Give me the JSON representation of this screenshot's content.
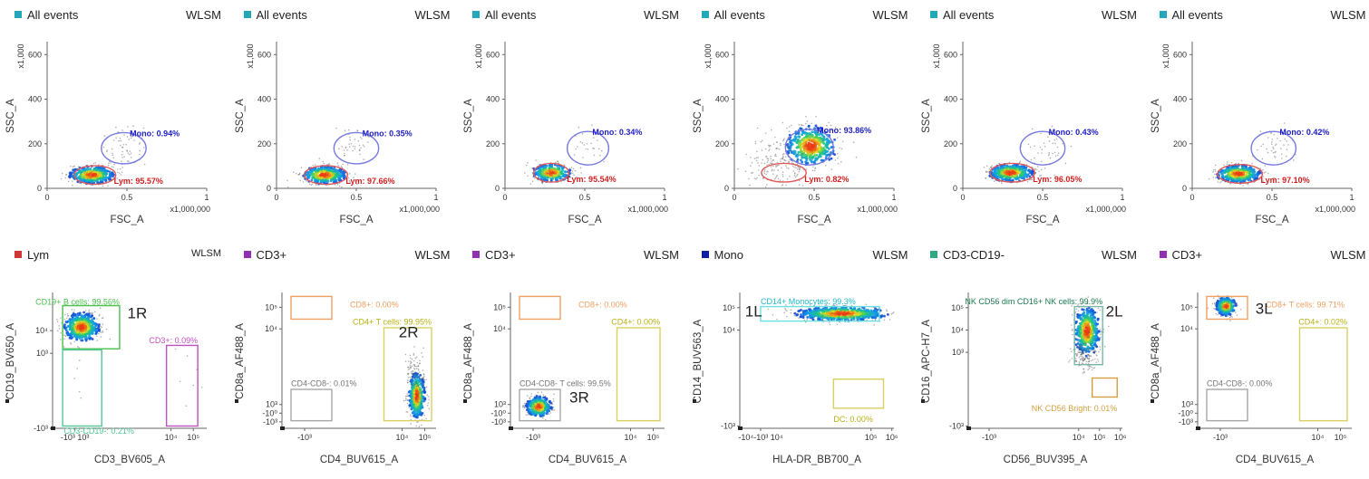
{
  "chart_data": [
    {
      "type": "scatter",
      "header": {
        "population": "All events",
        "source": "WLSM",
        "swatch": "#22a8b8"
      },
      "xlabel": "FSC_A",
      "ylabel": "SSC_A",
      "xlim": [
        0,
        1000000
      ],
      "ylim": [
        0,
        650000
      ],
      "x_ticks": [
        "0",
        "0.5",
        "1"
      ],
      "x_mult": "x1,000,000",
      "y_ticks": [
        "0",
        "200",
        "400",
        "600"
      ],
      "y_mult": "x1,000",
      "gates": [
        {
          "name": "Lym",
          "label": "Lym: 95.57%",
          "color": "#e05a5a",
          "cx": 300000,
          "cy": 60000,
          "rx": 130000,
          "ry": 42000
        },
        {
          "name": "Mono",
          "label": "Mono: 0.94%",
          "color": "#7a7ae0",
          "cx": 480000,
          "cy": 180000,
          "rx": 140000,
          "ry": 70000
        }
      ],
      "clusters": [
        {
          "x": 280000,
          "y": 60000,
          "sx": 70000,
          "sy": 20000,
          "n": 420
        },
        {
          "x": 480000,
          "y": 190000,
          "sx": 60000,
          "sy": 45000,
          "n": 60
        }
      ]
    },
    {
      "type": "scatter",
      "header": {
        "population": "All events",
        "source": "WLSM",
        "swatch": "#22a8b8"
      },
      "xlabel": "FSC_A",
      "ylabel": "SSC_A",
      "xlim": [
        0,
        1000000
      ],
      "ylim": [
        0,
        650000
      ],
      "x_ticks": [
        "0",
        "0.5",
        "1"
      ],
      "x_mult": "x1,000,000",
      "y_ticks": [
        "0",
        "200",
        "400",
        "600"
      ],
      "y_mult": "x1,000",
      "gates": [
        {
          "name": "Lym",
          "label": "Lym: 97.66%",
          "color": "#e05a5a",
          "cx": 310000,
          "cy": 60000,
          "rx": 135000,
          "ry": 42000
        },
        {
          "name": "Mono",
          "label": "Mono: 0.35%",
          "color": "#7a7ae0",
          "cx": 500000,
          "cy": 180000,
          "rx": 140000,
          "ry": 70000
        }
      ],
      "clusters": [
        {
          "x": 300000,
          "y": 60000,
          "sx": 70000,
          "sy": 20000,
          "n": 420
        },
        {
          "x": 500000,
          "y": 190000,
          "sx": 60000,
          "sy": 40000,
          "n": 40
        }
      ]
    },
    {
      "type": "scatter",
      "header": {
        "population": "All events",
        "source": "WLSM",
        "swatch": "#22a8b8"
      },
      "xlabel": "FSC_A",
      "ylabel": "SSC_A",
      "xlim": [
        0,
        1000000
      ],
      "ylim": [
        0,
        650000
      ],
      "x_ticks": [
        "0",
        "0.5",
        "1"
      ],
      "x_mult": "x1,000,000",
      "y_ticks": [
        "0",
        "200",
        "400",
        "600"
      ],
      "y_mult": "x1,000",
      "gates": [
        {
          "name": "Lym",
          "label": "Lym: 95.54%",
          "color": "#e05a5a",
          "cx": 290000,
          "cy": 70000,
          "rx": 110000,
          "ry": 42000
        },
        {
          "name": "Mono",
          "label": "Mono: 0.34%",
          "color": "#7a7ae0",
          "cx": 520000,
          "cy": 180000,
          "rx": 130000,
          "ry": 75000
        }
      ],
      "clusters": [
        {
          "x": 290000,
          "y": 70000,
          "sx": 60000,
          "sy": 20000,
          "n": 300
        },
        {
          "x": 520000,
          "y": 190000,
          "sx": 60000,
          "sy": 40000,
          "n": 25
        }
      ]
    },
    {
      "type": "scatter",
      "header": {
        "population": "All events",
        "source": "WLSM",
        "swatch": "#22a8b8"
      },
      "xlabel": "FSC_A",
      "ylabel": "SSC_A",
      "xlim": [
        0,
        1000000
      ],
      "ylim": [
        0,
        650000
      ],
      "x_ticks": [
        "0",
        "0.5",
        "1"
      ],
      "x_mult": "x1,000,000",
      "y_ticks": [
        "0",
        "200",
        "400",
        "600"
      ],
      "y_mult": "x1,000",
      "gates": [
        {
          "name": "Lym",
          "label": "Lym: 0.82%",
          "color": "#e05a5a",
          "cx": 310000,
          "cy": 70000,
          "rx": 140000,
          "ry": 42000
        },
        {
          "name": "Mono",
          "label": "Mono: 93.86%",
          "color": "#7a7ae0",
          "cx": 470000,
          "cy": 185000,
          "rx": 150000,
          "ry": 80000
        }
      ],
      "clusters": [
        {
          "x": 480000,
          "y": 190000,
          "sx": 80000,
          "sy": 45000,
          "n": 480
        },
        {
          "x": 250000,
          "y": 110000,
          "sx": 100000,
          "sy": 60000,
          "n": 180
        }
      ]
    },
    {
      "type": "scatter",
      "header": {
        "population": "All events",
        "source": "WLSM",
        "swatch": "#22a8b8"
      },
      "xlabel": "FSC_A",
      "ylabel": "SSC_A",
      "xlim": [
        0,
        1000000
      ],
      "ylim": [
        0,
        650000
      ],
      "x_ticks": [
        "0",
        "0.5",
        "1"
      ],
      "x_mult": "x1,000,000",
      "y_ticks": [
        "0",
        "200",
        "400",
        "600"
      ],
      "y_mult": "x1,000",
      "gates": [
        {
          "name": "Lym",
          "label": "Lym: 96.05%",
          "color": "#e05a5a",
          "cx": 310000,
          "cy": 70000,
          "rx": 140000,
          "ry": 42000
        },
        {
          "name": "Mono",
          "label": "Mono: 0.43%",
          "color": "#7a7ae0",
          "cx": 500000,
          "cy": 180000,
          "rx": 140000,
          "ry": 75000
        }
      ],
      "clusters": [
        {
          "x": 300000,
          "y": 70000,
          "sx": 70000,
          "sy": 20000,
          "n": 420
        },
        {
          "x": 510000,
          "y": 190000,
          "sx": 60000,
          "sy": 40000,
          "n": 40
        }
      ]
    },
    {
      "type": "scatter",
      "header": {
        "population": "All events",
        "source": "WLSM",
        "swatch": "#22a8b8"
      },
      "xlabel": "FSC_A",
      "ylabel": "SSC_A",
      "xlim": [
        0,
        1000000
      ],
      "ylim": [
        0,
        650000
      ],
      "x_ticks": [
        "0",
        "0.5",
        "1"
      ],
      "x_mult": "x1,000,000",
      "y_ticks": [
        "0",
        "200",
        "400",
        "600"
      ],
      "y_mult": "x1,000",
      "gates": [
        {
          "name": "Lym",
          "label": "Lym: 97.10%",
          "color": "#e05a5a",
          "cx": 300000,
          "cy": 65000,
          "rx": 140000,
          "ry": 42000
        },
        {
          "name": "Mono",
          "label": "Mono: 0.42%",
          "color": "#7a7ae0",
          "cx": 510000,
          "cy": 180000,
          "rx": 140000,
          "ry": 75000
        }
      ],
      "clusters": [
        {
          "x": 290000,
          "y": 65000,
          "sx": 70000,
          "sy": 20000,
          "n": 420
        },
        {
          "x": 510000,
          "y": 190000,
          "sx": 60000,
          "sy": 40000,
          "n": 40
        }
      ]
    },
    {
      "type": "scatter",
      "header": {
        "population": "Lym",
        "source": "WLSM",
        "swatch": "#d03838"
      },
      "xlabel": "CD3_BV605_A",
      "ylabel": "CD19_BV650_A",
      "xlim": [
        -1.3,
        5.6
      ],
      "ylim": [
        -0.3,
        5.6
      ],
      "x_ticks": [
        {
          "v": -0.3,
          "t": "-10³ 10³"
        },
        {
          "v": 4,
          "t": "10⁴"
        },
        {
          "v": 5,
          "t": "10⁵"
        }
      ],
      "y_ticks": [
        {
          "v": -0.3,
          "t": "-10³"
        },
        {
          "v": 3,
          "t": "10³"
        },
        {
          "v": 4,
          "t": "10⁴"
        }
      ],
      "gates": [
        {
          "name": "CD19+ B cells",
          "label": "CD19+ B cells: 99.56%",
          "color": "#4cc04c",
          "x1": -0.85,
          "x2": 1.7,
          "y1": 3.2,
          "y2": 5.1,
          "lx": 1.7,
          "ly": 5.15,
          "anchor": "end"
        },
        {
          "name": "CD3+",
          "label": "CD3+: 0.09%",
          "color": "#c050c0",
          "x1": 3.8,
          "x2": 5.2,
          "y1": -0.2,
          "y2": 3.35,
          "lx": 5.2,
          "ly": 3.45,
          "anchor": "end"
        },
        {
          "name": "CD3-CD19-",
          "label": "CD3-CD19-: 0.21%",
          "color": "#50c898",
          "x1": -0.85,
          "x2": 0.9,
          "y1": -0.2,
          "y2": 3.15,
          "lx": -0.8,
          "ly": -0.15,
          "anchor": "start",
          "lbelow": true
        }
      ],
      "tag": {
        "text": "1R",
        "x": 2.05,
        "y": 4.55
      },
      "clusters": [
        {
          "x": 0.0,
          "y": 4.15,
          "sx": 0.4,
          "sy": 0.32,
          "n": 520
        },
        {
          "x": 4.3,
          "y": 1.5,
          "sx": 0.5,
          "sy": 1.0,
          "n": 8
        },
        {
          "x": 0.0,
          "y": 1.5,
          "sx": 0.3,
          "sy": 1.0,
          "n": 6
        }
      ]
    },
    {
      "type": "scatter",
      "header": {
        "population": "CD3+",
        "source": "WLSM",
        "swatch": "#9030b0"
      },
      "xlabel": "CD4_BUV615_A",
      "ylabel": "CD8a_AF488_A",
      "xlim": [
        -1.3,
        5.5
      ],
      "ylim": [
        -0.6,
        5.6
      ],
      "x_ticks": [
        {
          "v": -0.3,
          "t": "-10³"
        },
        {
          "v": 4,
          "t": "10⁴"
        },
        {
          "v": 5,
          "t": "10⁵"
        }
      ],
      "y_ticks": [
        {
          "v": -0.3,
          "t": "-10³"
        },
        {
          "v": 0.1,
          "t": "-10⁰"
        },
        {
          "v": 0.5,
          "t": "10³"
        },
        {
          "v": 4,
          "t": "10⁴"
        },
        {
          "v": 5,
          "t": "10⁵"
        }
      ],
      "gates": [
        {
          "name": "CD8+",
          "label": "CD8+: 0.00%",
          "color": "#f0a060",
          "x1": -0.9,
          "x2": 0.9,
          "y1": 4.45,
          "y2": 5.5,
          "lx": 1.7,
          "ly": 5.0,
          "anchor": "start"
        },
        {
          "name": "CD4+ T cells",
          "label": "CD4+ T cells: 99.95%",
          "color": "#d8d060",
          "x1": 3.2,
          "x2": 5.3,
          "y1": -0.25,
          "y2": 4.05,
          "lx": 5.3,
          "ly": 4.2,
          "anchor": "end"
        },
        {
          "name": "CD4-CD8-",
          "label": "CD4-CD8-: 0.01%",
          "color": "#a8a8a8",
          "x1": -0.9,
          "x2": 0.9,
          "y1": -0.25,
          "y2": 1.2,
          "lx": -0.9,
          "ly": 1.35,
          "anchor": "start"
        }
      ],
      "tag": {
        "text": "2R",
        "x": 3.85,
        "y": 3.6
      },
      "clusters": [
        {
          "x": 4.65,
          "y": 0.9,
          "sx": 0.18,
          "sy": 0.55,
          "n": 420
        },
        {
          "x": 4.6,
          "y": 2.0,
          "sx": 0.2,
          "sy": 0.6,
          "n": 80
        }
      ]
    },
    {
      "type": "scatter",
      "header": {
        "population": "CD3+",
        "source": "WLSM",
        "swatch": "#9030b0"
      },
      "xlabel": "CD4_BUV615_A",
      "ylabel": "CD8a_AF488_A",
      "xlim": [
        -1.3,
        5.5
      ],
      "ylim": [
        -0.6,
        5.6
      ],
      "x_ticks": [
        {
          "v": -0.3,
          "t": "-10³"
        },
        {
          "v": 4,
          "t": "10⁴"
        },
        {
          "v": 5,
          "t": "10⁵"
        }
      ],
      "y_ticks": [
        {
          "v": -0.3,
          "t": "-10³"
        },
        {
          "v": 0.1,
          "t": "-10⁰"
        },
        {
          "v": 0.5,
          "t": "10³"
        },
        {
          "v": 4,
          "t": "10⁴"
        },
        {
          "v": 5,
          "t": "10⁵"
        }
      ],
      "gates": [
        {
          "name": "CD8+",
          "label": "CD8+: 0.00%",
          "color": "#f0a060",
          "x1": -0.9,
          "x2": 0.9,
          "y1": 4.45,
          "y2": 5.5,
          "lx": 1.7,
          "ly": 5.0,
          "anchor": "start"
        },
        {
          "name": "CD4+",
          "label": "CD4+: 0.00%",
          "color": "#d8d060",
          "x1": 3.4,
          "x2": 5.3,
          "y1": -0.25,
          "y2": 4.05,
          "lx": 5.3,
          "ly": 4.2,
          "anchor": "end"
        },
        {
          "name": "CD4-CD8- T cells",
          "label": "CD4-CD8- T cells: 99.5%",
          "color": "#a8a8a8",
          "x1": -0.9,
          "x2": 0.9,
          "y1": -0.25,
          "y2": 1.2,
          "lx": -0.9,
          "ly": 1.35,
          "anchor": "start"
        }
      ],
      "tag": {
        "text": "3R",
        "x": 1.3,
        "y": 0.6
      },
      "clusters": [
        {
          "x": -0.05,
          "y": 0.4,
          "sx": 0.28,
          "sy": 0.24,
          "n": 340
        }
      ]
    },
    {
      "type": "scatter",
      "header": {
        "population": "Mono",
        "source": "WLSM",
        "swatch": "#1020a0"
      },
      "xlabel": "HLA-DR_BB700_A",
      "ylabel": "CD14_BUV563_A",
      "xlim": [
        -1.3,
        6.1
      ],
      "ylim": [
        -0.4,
        5.6
      ],
      "x_ticks": [
        {
          "v": -0.3,
          "t": "-10⁴-10³ 10⁴"
        },
        {
          "v": 5,
          "t": "10⁵"
        },
        {
          "v": 6,
          "t": "10⁶"
        }
      ],
      "y_ticks": [
        {
          "v": -0.3,
          "t": "-10³"
        },
        {
          "v": 4,
          "t": "10⁴"
        },
        {
          "v": 5,
          "t": "10⁵"
        }
      ],
      "gates": [
        {
          "name": "CD14+ Monocytes",
          "label": "CD14+ Monocytes: 99.3%",
          "color": "#6ce0e0",
          "x1": -0.3,
          "x2": 5.4,
          "y1": 4.4,
          "y2": 5.05,
          "lx": -0.3,
          "ly": 5.15,
          "anchor": "start"
        },
        {
          "name": "DC",
          "label": "DC: 0.00%",
          "color": "#d8d060",
          "x1": 3.2,
          "x2": 5.6,
          "y1": 0.5,
          "y2": 1.8,
          "lx": 3.2,
          "ly": 0.28,
          "anchor": "start",
          "lbelow": true
        }
      ],
      "tag": {
        "text": "1L",
        "x": -1.05,
        "y": 4.6
      },
      "clusters": [
        {
          "x": 3.6,
          "y": 4.73,
          "sx": 1.1,
          "sy": 0.16,
          "n": 640
        }
      ]
    },
    {
      "type": "scatter",
      "header": {
        "population": "CD3-CD19-",
        "source": "WLSM",
        "swatch": "#30a880"
      },
      "xlabel": "CD56_BUV395_A",
      "ylabel": "CD16_APC-H7_A",
      "xlim": [
        -1.3,
        6.1
      ],
      "ylim": [
        -0.4,
        5.6
      ],
      "x_ticks": [
        {
          "v": -0.3,
          "t": "-10³"
        },
        {
          "v": 4,
          "t": "10⁴"
        },
        {
          "v": 5,
          "t": "10⁵"
        },
        {
          "v": 6,
          "t": "10⁶"
        }
      ],
      "y_ticks": [
        {
          "v": -0.3,
          "t": "-10³"
        },
        {
          "v": 3,
          "t": "10³"
        },
        {
          "v": 4,
          "t": "10⁴"
        },
        {
          "v": 5,
          "t": "10⁵"
        }
      ],
      "gates": [
        {
          "name": "NK CD56 dim CD16+",
          "label": "NK CD56 dim CD16+ NK cells: 99.9%",
          "color": "#78b8a8",
          "x1": 3.8,
          "x2": 5.15,
          "y1": 2.45,
          "y2": 5.05,
          "lx": 5.15,
          "ly": 5.15,
          "anchor": "end"
        },
        {
          "name": "NK CD56 Bright",
          "label": "NK CD56 Bright: 0.01%",
          "color": "#d0a040",
          "x1": 4.65,
          "x2": 5.85,
          "y1": 1.0,
          "y2": 1.85,
          "lx": 5.85,
          "ly": 0.78,
          "anchor": "end",
          "lbelow": true
        }
      ],
      "tag": {
        "text": "2L",
        "x": 5.3,
        "y": 4.6
      },
      "clusters": [
        {
          "x": 4.4,
          "y": 3.95,
          "sx": 0.3,
          "sy": 0.55,
          "n": 520
        },
        {
          "x": 4.2,
          "y": 2.9,
          "sx": 0.3,
          "sy": 0.35,
          "n": 120
        }
      ]
    },
    {
      "type": "scatter",
      "header": {
        "population": "CD3+",
        "source": "WLSM",
        "swatch": "#9030b0"
      },
      "xlabel": "CD4_BUV615_A",
      "ylabel": "CD8a_AF488_A",
      "xlim": [
        -1.3,
        5.5
      ],
      "ylim": [
        -0.6,
        5.6
      ],
      "x_ticks": [
        {
          "v": -0.3,
          "t": "-10³"
        },
        {
          "v": 4,
          "t": "10⁴"
        },
        {
          "v": 5,
          "t": "10⁵"
        }
      ],
      "y_ticks": [
        {
          "v": -0.3,
          "t": "-10³"
        },
        {
          "v": 0.1,
          "t": "-10⁰"
        },
        {
          "v": 0.5,
          "t": "10³"
        },
        {
          "v": 4,
          "t": "10⁴"
        },
        {
          "v": 5,
          "t": "10⁵"
        }
      ],
      "gates": [
        {
          "name": "CD8+ T cells",
          "label": "CD8+ T cells: 99.71%",
          "color": "#f0a060",
          "x1": -0.9,
          "x2": 0.9,
          "y1": 4.45,
          "y2": 5.5,
          "lx": 1.7,
          "ly": 5.0,
          "anchor": "start"
        },
        {
          "name": "CD4+",
          "label": "CD4+: 0.02%",
          "color": "#d8d060",
          "x1": 3.2,
          "x2": 5.3,
          "y1": -0.25,
          "y2": 4.05,
          "lx": 5.3,
          "ly": 4.2,
          "anchor": "end"
        },
        {
          "name": "CD4-CD8-",
          "label": "CD4-CD8-: 0.00%",
          "color": "#a8a8a8",
          "x1": -0.9,
          "x2": 0.9,
          "y1": -0.25,
          "y2": 1.2,
          "lx": -0.9,
          "ly": 1.35,
          "anchor": "start"
        }
      ],
      "tag": {
        "text": "3L",
        "x": 1.25,
        "y": 4.7
      },
      "clusters": [
        {
          "x": -0.05,
          "y": 5.05,
          "sx": 0.22,
          "sy": 0.22,
          "n": 360
        }
      ]
    }
  ]
}
